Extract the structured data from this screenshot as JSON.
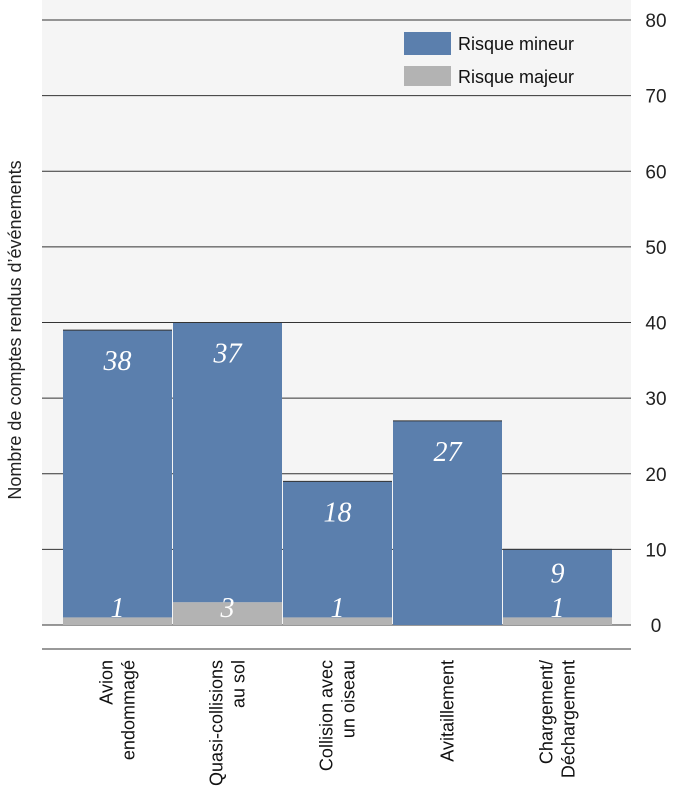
{
  "chart_data": {
    "type": "bar",
    "stacked": true,
    "categories": [
      [
        "Avion",
        "endommagé"
      ],
      [
        "Quasi-collisions",
        "au sol"
      ],
      [
        "Collision avec",
        "un oiseau"
      ],
      [
        "Avitaillement"
      ],
      [
        "Chargement/",
        "Déchargement"
      ]
    ],
    "series": [
      {
        "name": "Risque majeur",
        "values": [
          1,
          3,
          1,
          0,
          1
        ],
        "color": "#b3b3b3"
      },
      {
        "name": "Risque mineur",
        "values": [
          38,
          37,
          18,
          27,
          9
        ],
        "color": "#5b7fad"
      }
    ],
    "data_labels": {
      "Risque majeur": [
        "1",
        "3",
        "1",
        "",
        "1"
      ],
      "Risque mineur": [
        "38",
        "37",
        "18",
        "27",
        "9"
      ]
    },
    "ylabel": "Nombre de comptes rendus d’événements",
    "xlabel": "",
    "ylim": [
      0,
      80
    ],
    "yticks": [
      0,
      10,
      20,
      30,
      40,
      50,
      60,
      70,
      80
    ],
    "y_axis_side": "right",
    "grid": true,
    "legend_position": "top-right",
    "legend_order": [
      "Risque mineur",
      "Risque majeur"
    ],
    "plot_background": "#f5f5f5"
  }
}
